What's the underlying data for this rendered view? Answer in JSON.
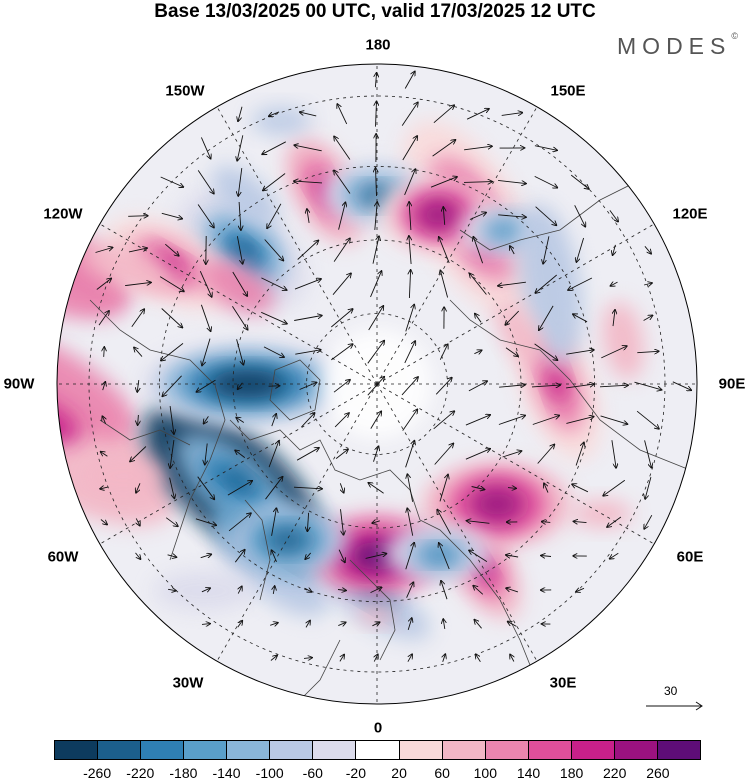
{
  "title": "Base 13/03/2025 00 UTC, valid 17/03/2025 12 UTC",
  "brand": {
    "name": "MODES",
    "mark": "©"
  },
  "longitude_labels": [
    "180",
    "150E",
    "120E",
    "90E",
    "60E",
    "30E",
    "0",
    "30W",
    "60W",
    "90W",
    "120W",
    "150W"
  ],
  "wind_scale": {
    "value": "30"
  },
  "colorbar": {
    "colors": [
      "#0d3b5e",
      "#1c5f8c",
      "#2f7fb3",
      "#5a9fca",
      "#8ab6d9",
      "#b9c9e4",
      "#dcdcec",
      "#ffffff",
      "#f9dada",
      "#f3b7c6",
      "#ea85af",
      "#e04f9b",
      "#c8208a",
      "#9b1280",
      "#5e0d78"
    ],
    "tick_labels": [
      "-260",
      "-220",
      "-180",
      "-140",
      "-100",
      "-60",
      "-20",
      "20",
      "60",
      "100",
      "140",
      "180",
      "220",
      "260"
    ]
  }
}
